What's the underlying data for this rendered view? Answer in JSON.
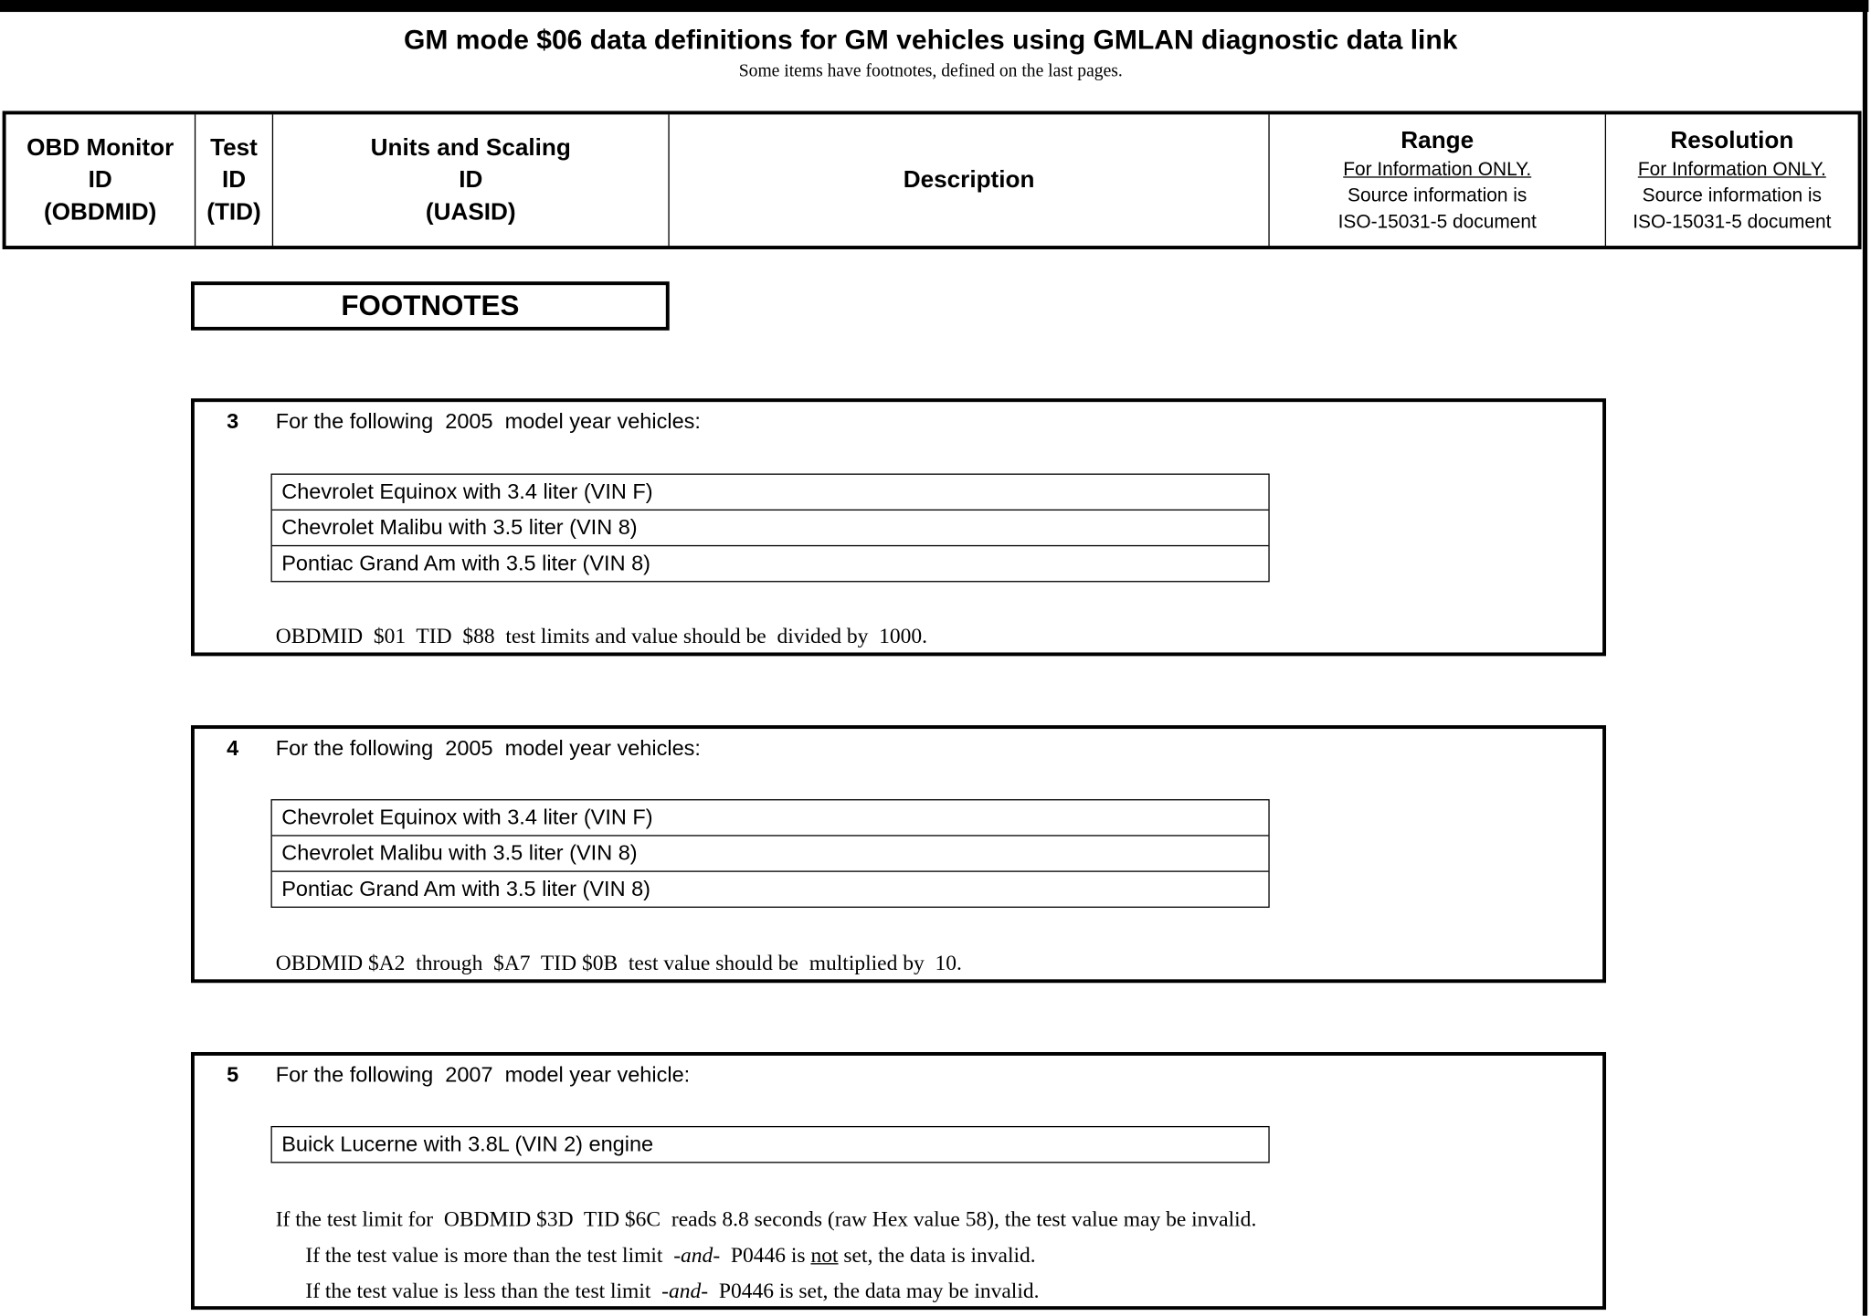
{
  "header": {
    "title": "GM mode $06 data definitions for GM vehicles using GMLAN diagnostic data link",
    "subtitle": "Some items have footnotes, defined on the last pages."
  },
  "columns": [
    {
      "lines": [
        "OBD Monitor",
        "ID",
        "(OBDMID)"
      ]
    },
    {
      "lines": [
        "Test",
        "ID",
        "(TID)"
      ]
    },
    {
      "lines": [
        "Units and Scaling",
        "ID",
        "(UASID)"
      ]
    },
    {
      "lines": [
        "Description"
      ]
    },
    {
      "title": "Range",
      "note_underlined": "For Information ONLY.",
      "note_lines": [
        "Source information is",
        "ISO-15031-5 document"
      ]
    },
    {
      "title": "Resolution",
      "note_underlined": "For Information ONLY.",
      "note_lines": [
        "Source information is",
        "ISO-15031-5 document"
      ]
    }
  ],
  "footnotes_heading": "FOOTNOTES",
  "footnotes": [
    {
      "number": "3",
      "intro": "For the following  2005  model year vehicles:",
      "vehicles": [
        "Chevrolet Equinox with 3.4 liter (VIN F)",
        "Chevrolet Malibu with 3.5 liter (VIN 8)",
        "Pontiac Grand Am with 3.5 liter (VIN 8)"
      ],
      "note": "OBDMID  $01  TID  $88  test limits and value should be  divided by  1000."
    },
    {
      "number": "4",
      "intro": "For the following  2005  model year vehicles:",
      "vehicles": [
        "Chevrolet Equinox with 3.4 liter (VIN F)",
        "Chevrolet Malibu with 3.5 liter (VIN 8)",
        "Pontiac Grand Am with 3.5 liter (VIN 8)"
      ],
      "note": "OBDMID $A2  through  $A7  TID $0B  test value should be  multiplied by  10."
    },
    {
      "number": "5",
      "intro": "For the following  2007  model year vehicle:",
      "vehicles": [
        "Buick Lucerne with 3.8L (VIN 2) engine"
      ],
      "note": "If the test limit for  OBDMID $3D  TID $6C  reads 8.8 seconds (raw Hex value 58), the test value may be invalid.",
      "line2": {
        "a": "If the test value is more than the test limit  ",
        "b": "-and-",
        "c": "  P0446 is ",
        "d": "not",
        "e": " set, the data is invalid."
      },
      "line3": {
        "a": "If the test value is less than the test limit  ",
        "b": "-and-",
        "c": "  P0446 is set, the data may be invalid."
      }
    }
  ]
}
